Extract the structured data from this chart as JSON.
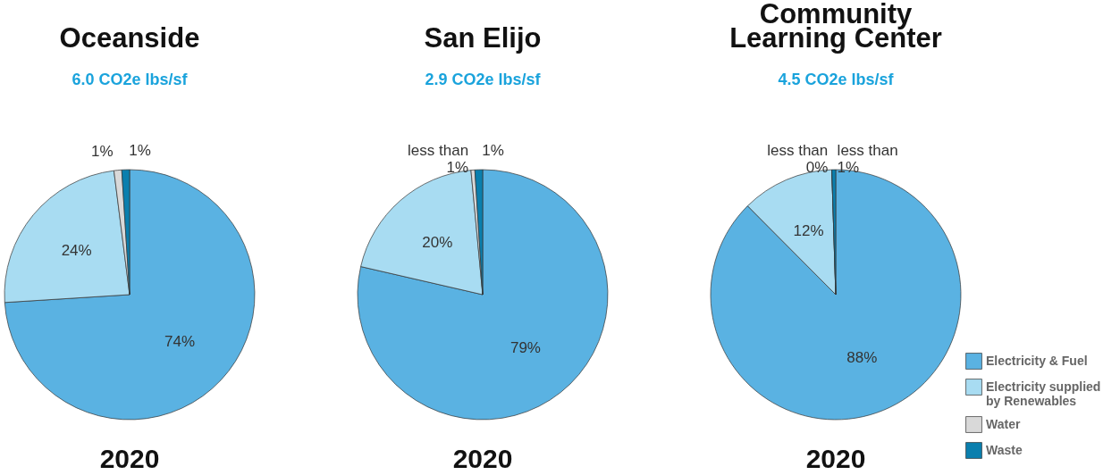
{
  "chart_data": [
    {
      "type": "pie",
      "title": "Oceanside",
      "subtitle": "6.0 CO2e lbs/sf",
      "categories": [
        null,
        null,
        null,
        null
      ],
      "values": [
        74,
        24,
        1,
        1
      ],
      "colors": [
        "#5ab2e2",
        "#a8dcf2",
        "#d9d9d9",
        "#0a7fae"
      ],
      "value_labels": [
        "74%",
        "24%",
        "1%",
        "1%"
      ],
      "annotations": [
        "2020"
      ],
      "legend": false
    },
    {
      "type": "pie",
      "title": "San Elijo",
      "subtitle": "2.9 CO2e lbs/sf",
      "categories": [
        null,
        null,
        null,
        null
      ],
      "values": [
        79,
        20,
        0.5,
        1
      ],
      "colors": [
        "#5ab2e2",
        "#a8dcf2",
        "#d9d9d9",
        "#0a7fae"
      ],
      "value_labels": [
        "79%",
        "20%",
        "less than 1%",
        "1%"
      ],
      "annotations": [
        "2020"
      ],
      "legend": false
    },
    {
      "type": "pie",
      "title": "Community Learning Center",
      "subtitle": "4.5 CO2e lbs/sf",
      "categories": [
        "Electricity & Fuel",
        "Electricity supplied by Renewables",
        "Water",
        "Waste"
      ],
      "values": [
        88,
        12,
        0,
        0.5
      ],
      "colors": [
        "#5ab2e2",
        "#a8dcf2",
        "#d9d9d9",
        "#0a7fae"
      ],
      "value_labels": [
        "88%",
        "12%",
        "less than 0%",
        "less than 1%"
      ],
      "annotations": [
        "2020"
      ],
      "legend": "bottom right"
    }
  ]
}
